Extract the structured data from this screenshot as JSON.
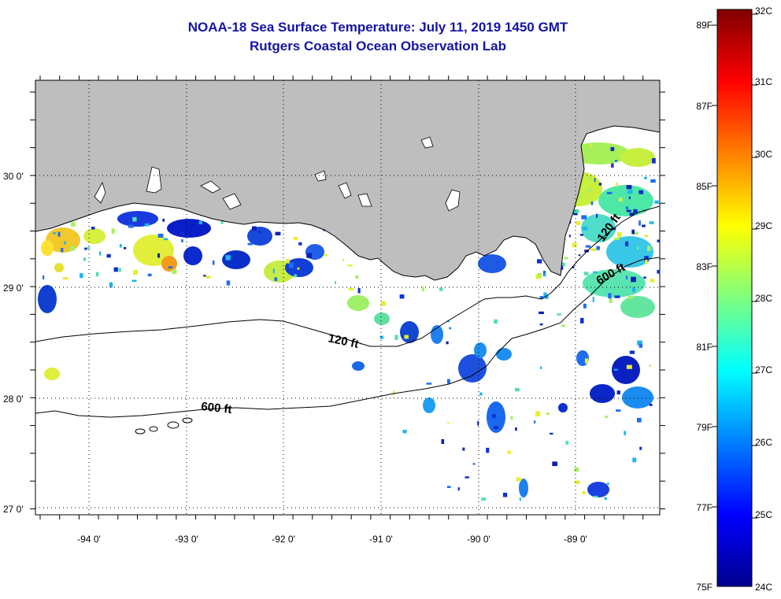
{
  "header": {
    "title": "NOAA-18 Sea Surface Temperature:  July 11, 2019 1450 GMT",
    "subtitle": "Rutgers Coastal Ocean Observation Lab"
  },
  "map": {
    "lon_labels": [
      "-94 0'",
      "-93 0'",
      "-92 0'",
      "-91 0'",
      "-90 0'",
      "-89 0'"
    ],
    "lat_labels": [
      "30 0'",
      "29 0'",
      "28 0'",
      "27 0'"
    ],
    "contour_labels": [
      "120 ft",
      "600 ft",
      "120 ft",
      "600 ft"
    ],
    "lon_range": [
      -94.5,
      -88.1
    ],
    "lat_range": [
      26.9,
      30.8
    ]
  },
  "colorbar": {
    "fahrenheit_labels": [
      "89F",
      "87F",
      "85F",
      "83F",
      "81F",
      "79F",
      "77F",
      "75F"
    ],
    "celsius_labels": [
      "32C",
      "31C",
      "30C",
      "29C",
      "28C",
      "27C",
      "26C",
      "25C",
      "24C"
    ],
    "range_c": [
      24,
      32
    ]
  },
  "colors": {
    "land": "#bebebe",
    "title": "#1414a8"
  }
}
